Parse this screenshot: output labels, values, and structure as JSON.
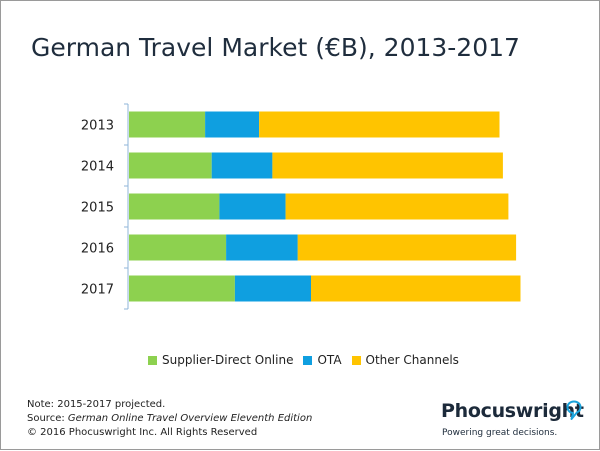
{
  "chart_data": {
    "type": "bar",
    "orientation": "horizontal",
    "stacked": true,
    "title": "German Travel Market (€B), 2013-2017",
    "categories": [
      "2013",
      "2014",
      "2015",
      "2016",
      "2017"
    ],
    "series": [
      {
        "name": "Supplier-Direct Online",
        "color": "#8dd14f",
        "values": [
          6.9,
          7.5,
          8.2,
          8.8,
          9.6
        ]
      },
      {
        "name": "OTA",
        "color": "#0f9fe0",
        "values": [
          4.9,
          5.5,
          6.0,
          6.5,
          6.9
        ]
      },
      {
        "name": "Other Channels",
        "color": "#ffc400",
        "values": [
          21.8,
          20.9,
          20.2,
          19.8,
          19.0
        ]
      }
    ],
    "xlim": [
      0,
      35
    ],
    "xticks_shown": false,
    "grid": false,
    "legend_position": "bottom"
  },
  "footer": {
    "note": "Note: 2015-2017 projected.",
    "source_prefix": "Source: ",
    "source_title": "German Online Travel Overview Eleventh Edition",
    "copyright": "© 2016 Phocuswright Inc. All Rights Reserved"
  },
  "logo": {
    "name": "Phocuswright",
    "tagline": "Powering great decisions.",
    "icon": "speech-bubble-icon"
  }
}
